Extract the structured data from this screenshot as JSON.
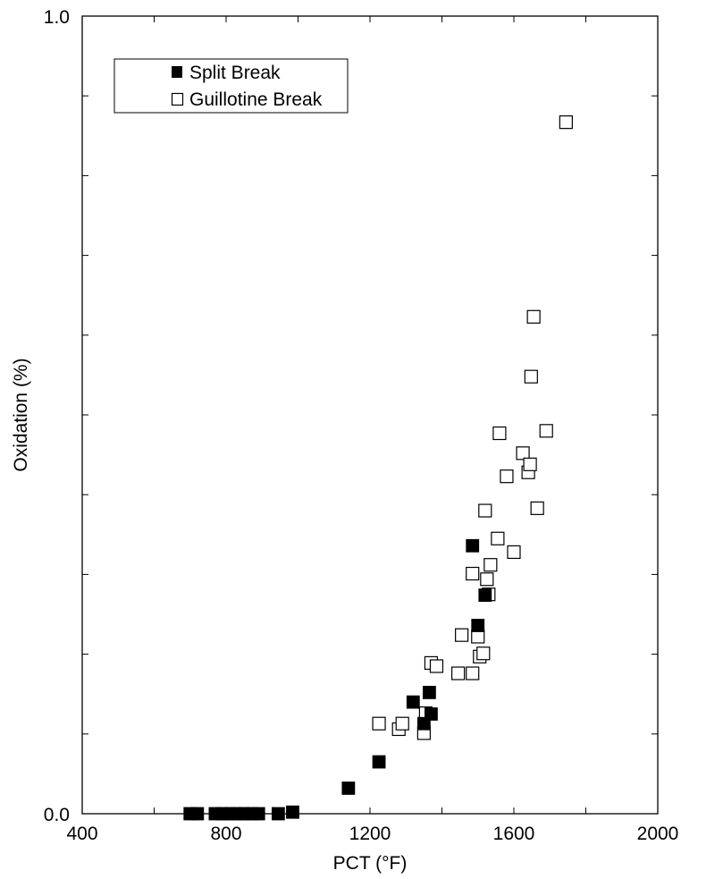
{
  "chart_data": {
    "type": "scatter",
    "title": "",
    "xlabel": "PCT (°F)",
    "ylabel": "Oxidation (%)",
    "xlim": [
      400,
      2000
    ],
    "ylim": [
      0.0,
      1.0
    ],
    "x_ticks": [
      400,
      800,
      1200,
      1600,
      2000
    ],
    "x_tick_labels": [
      "400",
      "800",
      "1200",
      "1600",
      "2000"
    ],
    "y_ticks": [
      0.0,
      1.0
    ],
    "y_tick_labels": [
      "0.0",
      "1.0"
    ],
    "x_minor_step": 200,
    "y_minor_step": 0.1,
    "grid": false,
    "legend_position": "top-left",
    "series": [
      {
        "name": "Split Break",
        "marker": "filled-square",
        "color": "#000000",
        "points": [
          [
            700,
            0.0
          ],
          [
            720,
            0.0
          ],
          [
            770,
            0.0
          ],
          [
            790,
            0.0
          ],
          [
            810,
            0.0
          ],
          [
            830,
            0.0
          ],
          [
            850,
            0.0
          ],
          [
            870,
            0.0
          ],
          [
            890,
            0.0
          ],
          [
            945,
            0.0
          ],
          [
            985,
            0.002
          ],
          [
            1140,
            0.032
          ],
          [
            1225,
            0.065
          ],
          [
            1320,
            0.14
          ],
          [
            1350,
            0.113
          ],
          [
            1365,
            0.152
          ],
          [
            1370,
            0.125
          ],
          [
            1485,
            0.336
          ],
          [
            1500,
            0.236
          ],
          [
            1520,
            0.274
          ]
        ]
      },
      {
        "name": "Guillotine Break",
        "marker": "open-square",
        "color": "#000000",
        "points": [
          [
            1225,
            0.113
          ],
          [
            1280,
            0.106
          ],
          [
            1290,
            0.113
          ],
          [
            1350,
            0.101
          ],
          [
            1355,
            0.126
          ],
          [
            1370,
            0.189
          ],
          [
            1385,
            0.185
          ],
          [
            1445,
            0.176
          ],
          [
            1455,
            0.224
          ],
          [
            1485,
            0.176
          ],
          [
            1485,
            0.301
          ],
          [
            1500,
            0.222
          ],
          [
            1505,
            0.197
          ],
          [
            1515,
            0.201
          ],
          [
            1520,
            0.38
          ],
          [
            1525,
            0.294
          ],
          [
            1530,
            0.275
          ],
          [
            1535,
            0.312
          ],
          [
            1555,
            0.345
          ],
          [
            1560,
            0.477
          ],
          [
            1580,
            0.423
          ],
          [
            1600,
            0.328
          ],
          [
            1625,
            0.452
          ],
          [
            1640,
            0.428
          ],
          [
            1645,
            0.438
          ],
          [
            1648,
            0.548
          ],
          [
            1655,
            0.623
          ],
          [
            1665,
            0.383
          ],
          [
            1690,
            0.48
          ],
          [
            1745,
            0.867
          ]
        ]
      }
    ]
  }
}
